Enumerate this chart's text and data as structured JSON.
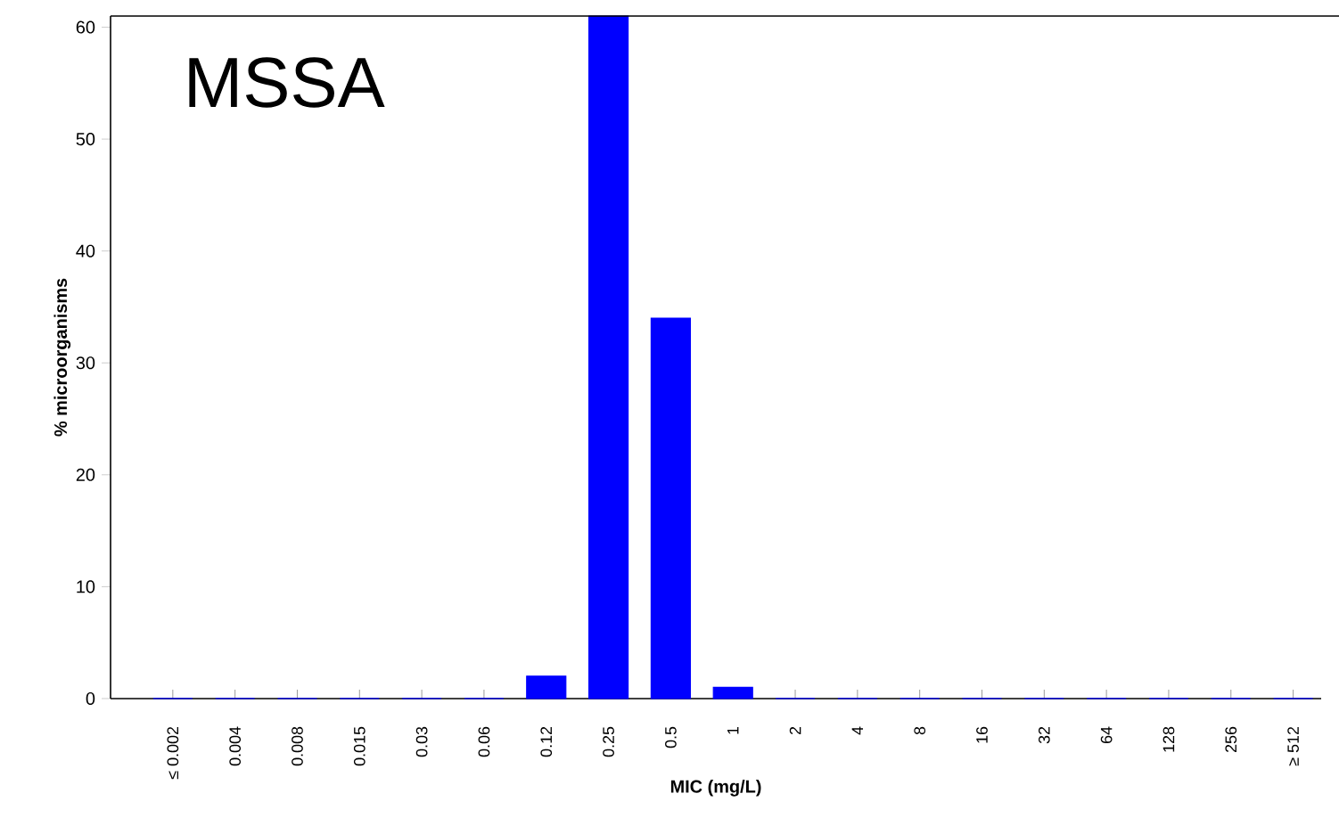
{
  "chart_data": {
    "type": "bar",
    "title": "MSSA",
    "xlabel": "MIC (mg/L)",
    "ylabel": "% microorganisms",
    "categories": [
      "≤ 0.002",
      "0.004",
      "0.008",
      "0.015",
      "0.03",
      "0.06",
      "0.12",
      "0.25",
      "0.5",
      "1",
      "2",
      "4",
      "8",
      "16",
      "32",
      "64",
      "128",
      "256",
      "≥ 512"
    ],
    "values": [
      0,
      0,
      0,
      0,
      0,
      0,
      2,
      61,
      34,
      1,
      0,
      0,
      0,
      0,
      0,
      0,
      0,
      0,
      0
    ],
    "color": "#0000ff",
    "ylim": [
      0,
      61
    ],
    "yticks": [
      0,
      10,
      20,
      30,
      40,
      50,
      60
    ],
    "grid": false
  }
}
